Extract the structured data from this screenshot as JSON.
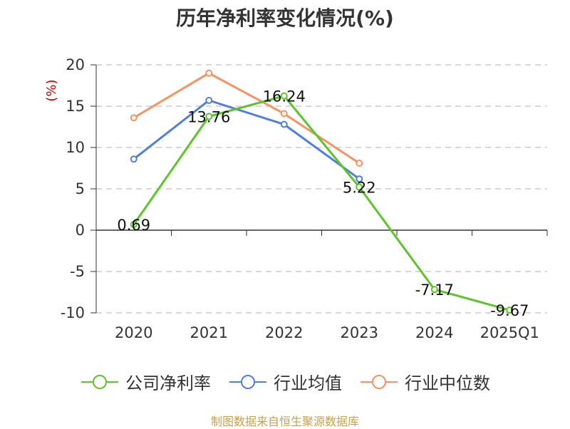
{
  "title": "历年净利率变化情况(%)",
  "source": "制图数据来自恒生聚源数据库",
  "chart_data": {
    "type": "line",
    "title": "历年净利率变化情况(%)",
    "ylabel": "(%)",
    "xlabel": "",
    "categories": [
      "2020",
      "2021",
      "2022",
      "2023",
      "2024",
      "2025Q1"
    ],
    "ylim": [
      -10,
      20
    ],
    "yticks": [
      20,
      15,
      10,
      5,
      0,
      -5,
      -10
    ],
    "grid": true,
    "legend_position": "bottom",
    "series": [
      {
        "name": "公司净利率",
        "color": "#5ec42c",
        "values": [
          0.69,
          13.76,
          16.24,
          5.22,
          -7.17,
          -9.67
        ],
        "labels": [
          "0.69",
          "13.76",
          "16.24",
          "5.22",
          "-7.17",
          "-9.67"
        ]
      },
      {
        "name": "行业均值",
        "color": "#4f7fde",
        "values": [
          8.6,
          15.7,
          12.8,
          6.2,
          null,
          null
        ]
      },
      {
        "name": "行业中位数",
        "color": "#f59362",
        "values": [
          13.6,
          19.0,
          14.1,
          8.1,
          null,
          null
        ]
      }
    ]
  }
}
